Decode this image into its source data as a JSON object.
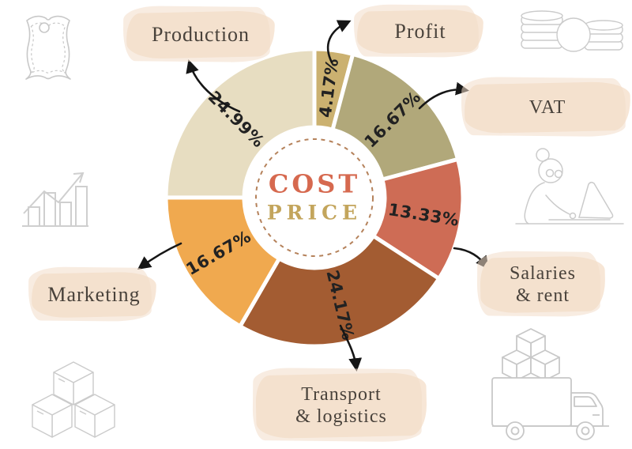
{
  "center": {
    "title_line1": "COST",
    "title_line2": "PRICE"
  },
  "chart_data": {
    "type": "pie",
    "subtype": "donut",
    "title": "COST PRICE",
    "start_angle_deg": 0,
    "direction": "clockwise",
    "legend_position": "callouts-around",
    "segments": [
      {
        "label": "Profit",
        "value": 4.17,
        "display": "4.17%",
        "color": "#CBB170"
      },
      {
        "label": "VAT",
        "value": 16.67,
        "display": "16.67%",
        "color": "#B1A87A"
      },
      {
        "label": "Salaries & rent",
        "value": 13.33,
        "display": "13.33%",
        "color": "#CE6C55"
      },
      {
        "label": "Transport & logistics",
        "value": 24.17,
        "display": "24.17%",
        "color": "#A35C32"
      },
      {
        "label": "Marketing",
        "value": 16.67,
        "display": "16.67%",
        "color": "#F0A94F"
      },
      {
        "label": "Production",
        "value": 24.99,
        "display": "24.99%",
        "color": "#E7DDC1"
      }
    ]
  },
  "labels": {
    "production": {
      "text": "Production"
    },
    "profit": {
      "text": "Profit"
    },
    "vat": {
      "text": "VAT"
    },
    "salaries": {
      "line1": "Salaries",
      "line2": "& rent"
    },
    "transport": {
      "line1": "Transport",
      "line2": "& logistics"
    },
    "marketing": {
      "text": "Marketing"
    }
  },
  "icons": {
    "top_left": "leather-hide",
    "top_right": "coin-stacks",
    "middle_left": "growth-bar-chart",
    "middle_right": "woman-working-on-laptop",
    "bottom_left": "cardboard-boxes",
    "bottom_right": "delivery-truck-with-boxes"
  },
  "colors": {
    "background": "#FFFFFF",
    "cost_text": "#D6694F",
    "price_text": "#C3A55C",
    "dashed_ring": "#B5825B",
    "percent_text": "#222222",
    "callout_text": "#49423B",
    "brush_background": "#F7E6D6",
    "icon_stroke": "#C8C8C8",
    "arrow": "#161616",
    "slice_gap": "#FFFFFF"
  }
}
